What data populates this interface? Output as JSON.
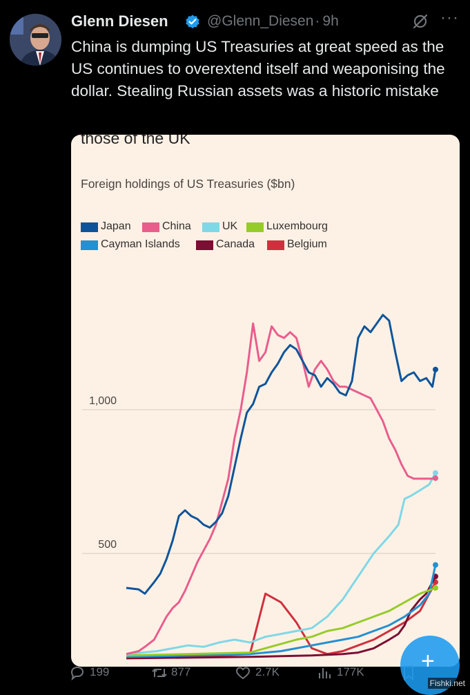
{
  "author": {
    "name": "Glenn Diesen",
    "handle": "@Glenn_Diesen",
    "separator": "·",
    "time": "9h"
  },
  "tweet": {
    "text": "China is dumping US Treasuries at great speed as the US continues to overextend itself and weaponising the dollar. Stealing Russian assets was a historic mistake"
  },
  "media": {
    "top_text": "those of the UK"
  },
  "chart_data": {
    "type": "line",
    "title": "Foreign holdings of US Treasuries ($bn)",
    "xlabel": "",
    "ylabel": "",
    "yticks": [
      {
        "value": 1000,
        "label": "1,000"
      },
      {
        "value": 500,
        "label": "500"
      }
    ],
    "ylim": [
      130,
      1380
    ],
    "xlim": [
      0,
      100
    ],
    "grid": true,
    "legend_position": "top-left",
    "series": [
      {
        "name": "Japan",
        "color": "#0f5499",
        "x": [
          0,
          4,
          6,
          9,
          11,
          13,
          15,
          17,
          19,
          21,
          23,
          25,
          27,
          29,
          31,
          33,
          35,
          37,
          39,
          41,
          43,
          45,
          47,
          49,
          51,
          53,
          55,
          57,
          59,
          61,
          63,
          65,
          67,
          69,
          71,
          73,
          75,
          77,
          79,
          81,
          83,
          85,
          87,
          89,
          91,
          93,
          95,
          97,
          99,
          100
        ],
        "y": [
          380,
          375,
          360,
          400,
          430,
          480,
          545,
          630,
          650,
          630,
          620,
          600,
          590,
          610,
          640,
          700,
          800,
          900,
          990,
          1020,
          1080,
          1090,
          1130,
          1160,
          1200,
          1225,
          1210,
          1170,
          1130,
          1120,
          1080,
          1110,
          1090,
          1060,
          1050,
          1100,
          1250,
          1290,
          1270,
          1300,
          1330,
          1310,
          1200,
          1100,
          1120,
          1130,
          1100,
          1110,
          1080,
          1140
        ]
      },
      {
        "name": "China",
        "color": "#e95d8c",
        "x": [
          0,
          4,
          6,
          9,
          11,
          13,
          15,
          17,
          19,
          21,
          23,
          25,
          27,
          29,
          31,
          33,
          35,
          37,
          39,
          41,
          43,
          45,
          47,
          49,
          51,
          53,
          55,
          57,
          59,
          61,
          63,
          65,
          67,
          69,
          71,
          73,
          75,
          77,
          79,
          81,
          83,
          85,
          87,
          89,
          91,
          93,
          95,
          97,
          99,
          100
        ],
        "y": [
          150,
          160,
          175,
          200,
          240,
          280,
          310,
          330,
          370,
          420,
          470,
          510,
          550,
          600,
          680,
          760,
          900,
          1000,
          1130,
          1300,
          1170,
          1200,
          1290,
          1260,
          1250,
          1270,
          1250,
          1170,
          1080,
          1140,
          1170,
          1140,
          1100,
          1080,
          1080,
          1070,
          1060,
          1050,
          1040,
          1000,
          960,
          900,
          860,
          810,
          770,
          760,
          760,
          760,
          760,
          762
        ]
      },
      {
        "name": "UK",
        "color": "#7fd8e6",
        "x": [
          0,
          5,
          10,
          15,
          20,
          25,
          30,
          35,
          40,
          45,
          50,
          55,
          60,
          65,
          70,
          75,
          80,
          85,
          88,
          90,
          92,
          95,
          98,
          100
        ],
        "y": [
          150,
          155,
          160,
          170,
          180,
          175,
          190,
          200,
          190,
          210,
          220,
          230,
          240,
          280,
          340,
          420,
          500,
          560,
          600,
          690,
          700,
          720,
          740,
          780
        ]
      },
      {
        "name": "Luxembourg",
        "color": "#96cc28",
        "x": [
          0,
          20,
          40,
          55,
          60,
          65,
          70,
          75,
          80,
          85,
          90,
          95,
          100
        ],
        "y": [
          145,
          150,
          155,
          200,
          210,
          230,
          240,
          260,
          280,
          300,
          330,
          360,
          380
        ]
      },
      {
        "name": "Cayman Islands",
        "color": "#2490d0",
        "x": [
          0,
          20,
          40,
          50,
          55,
          60,
          65,
          70,
          75,
          80,
          85,
          90,
          95,
          98,
          100
        ],
        "y": [
          140,
          145,
          150,
          160,
          170,
          180,
          190,
          200,
          210,
          230,
          250,
          280,
          320,
          360,
          460
        ]
      },
      {
        "name": "Canada",
        "color": "#7a0e33",
        "x": [
          0,
          40,
          60,
          70,
          75,
          80,
          85,
          88,
          90,
          92,
          95,
          97,
          100
        ],
        "y": [
          135,
          140,
          145,
          150,
          155,
          170,
          200,
          220,
          250,
          300,
          340,
          360,
          420
        ]
      },
      {
        "name": "Belgium",
        "color": "#d0303d",
        "x": [
          0,
          30,
          40,
          45,
          50,
          55,
          60,
          65,
          70,
          75,
          80,
          85,
          90,
          95,
          100
        ],
        "y": [
          140,
          145,
          150,
          360,
          330,
          260,
          170,
          150,
          160,
          180,
          200,
          230,
          260,
          300,
          400
        ]
      }
    ]
  },
  "actions": {
    "replies": "199",
    "retweets": "877",
    "likes": "2.7K",
    "views": "177K"
  },
  "watermark": "Fishki.net"
}
